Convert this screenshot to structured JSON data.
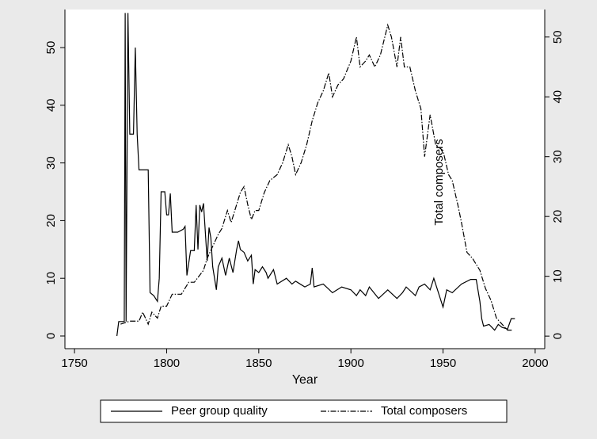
{
  "chart_data": {
    "type": "line",
    "x_label": "Year",
    "annotation": "Total composers",
    "xlim": [
      1744.8,
      2005.2
    ],
    "xticks": [
      1750,
      1800,
      1850,
      1900,
      1950,
      2000
    ],
    "ylim": [
      -2.2,
      56.6
    ],
    "yticks": [
      0,
      10,
      20,
      30,
      40,
      50
    ],
    "y2lim": [
      -2.1,
      54.6
    ],
    "y2ticks": [
      0,
      10,
      20,
      30,
      40,
      50
    ],
    "legend": "bottom",
    "series": [
      {
        "name": "Peer group quality",
        "color": "#000000",
        "dash": "solid",
        "x": [
          1773,
          1774,
          1777,
          1777.5,
          1778,
          1779,
          1780,
          1782,
          1783,
          1784,
          1785,
          1790,
          1791,
          1793,
          1795,
          1796,
          1797,
          1799,
          1800,
          1801,
          1802,
          1803,
          1806,
          1809,
          1810,
          1811,
          1813,
          1815,
          1816,
          1817,
          1818,
          1819,
          1820,
          1822,
          1823,
          1824,
          1825,
          1827,
          1828,
          1830,
          1832,
          1834,
          1836,
          1838,
          1839,
          1840,
          1842,
          1844,
          1846,
          1847,
          1848,
          1850,
          1852,
          1854,
          1855,
          1858,
          1860,
          1865,
          1868,
          1870,
          1875,
          1878,
          1879,
          1880,
          1885,
          1890,
          1895,
          1900,
          1903,
          1905,
          1908,
          1910,
          1915,
          1920,
          1925,
          1928,
          1930,
          1935,
          1937,
          1940,
          1943,
          1945,
          1950,
          1952,
          1955,
          1960,
          1965,
          1968,
          1970,
          1971,
          1972,
          1975,
          1978,
          1980,
          1982,
          1985,
          1987,
          1989
        ],
        "values": [
          0,
          2.5,
          2.5,
          56,
          2.5,
          56,
          35,
          35,
          50,
          35,
          28.8,
          28.8,
          7.5,
          7,
          6,
          10,
          25,
          25,
          21,
          21,
          24.7,
          18,
          18,
          18.5,
          19,
          10.5,
          14.8,
          14.8,
          22.7,
          15,
          22.7,
          21.5,
          23,
          13,
          18.8,
          17,
          12,
          8,
          12,
          13.5,
          10.5,
          13.5,
          11,
          15,
          16.5,
          15,
          14.5,
          13,
          14,
          9,
          11.5,
          11,
          12,
          11,
          10,
          11.5,
          9,
          10,
          9,
          9.5,
          8.5,
          9,
          11.8,
          8.5,
          9,
          7.5,
          8.5,
          8,
          7,
          8,
          7,
          8.5,
          6.5,
          8,
          6.5,
          7.5,
          8.5,
          7,
          8.5,
          9,
          8,
          10,
          5,
          8,
          7.5,
          9,
          9.8,
          9.8,
          6,
          3,
          1.7,
          2,
          1,
          2,
          1.5,
          1.2,
          3,
          3
        ]
      },
      {
        "name": "Total composers",
        "color": "#000000",
        "dash": "dashdot",
        "axis": "y2",
        "x": [
          1775,
          1780,
          1785,
          1787,
          1790,
          1792,
          1795,
          1797,
          1800,
          1803,
          1808,
          1812,
          1815,
          1820,
          1822,
          1825,
          1828,
          1830,
          1833,
          1835,
          1838,
          1840,
          1842,
          1844,
          1846,
          1848,
          1850,
          1853,
          1856,
          1860,
          1863,
          1866,
          1868,
          1870,
          1873,
          1876,
          1879,
          1882,
          1885,
          1888,
          1890,
          1893,
          1896,
          1900,
          1903,
          1905,
          1908,
          1910,
          1913,
          1916,
          1920,
          1922,
          1925,
          1927,
          1929,
          1932,
          1935,
          1938,
          1940,
          1943,
          1946,
          1950,
          1953,
          1955,
          1958,
          1960,
          1963,
          1966,
          1970,
          1973,
          1976,
          1979,
          1982,
          1985,
          1988
        ],
        "values": [
          2,
          2.5,
          2.5,
          4,
          2,
          4,
          3,
          5,
          5,
          7,
          7,
          9,
          9,
          11,
          13,
          15,
          17,
          18,
          21,
          19,
          22,
          24,
          25,
          22,
          19.5,
          21,
          21,
          24,
          26,
          27,
          29,
          32,
          30,
          27,
          29,
          32,
          36,
          39,
          41,
          44,
          40,
          42,
          43,
          46,
          50,
          45,
          46,
          47,
          45,
          47,
          52,
          50,
          45,
          50,
          45,
          45,
          41,
          38,
          30,
          37,
          32,
          31,
          27,
          26,
          22,
          19,
          14,
          13,
          11,
          8,
          6,
          3,
          2,
          1,
          1
        ]
      }
    ]
  }
}
